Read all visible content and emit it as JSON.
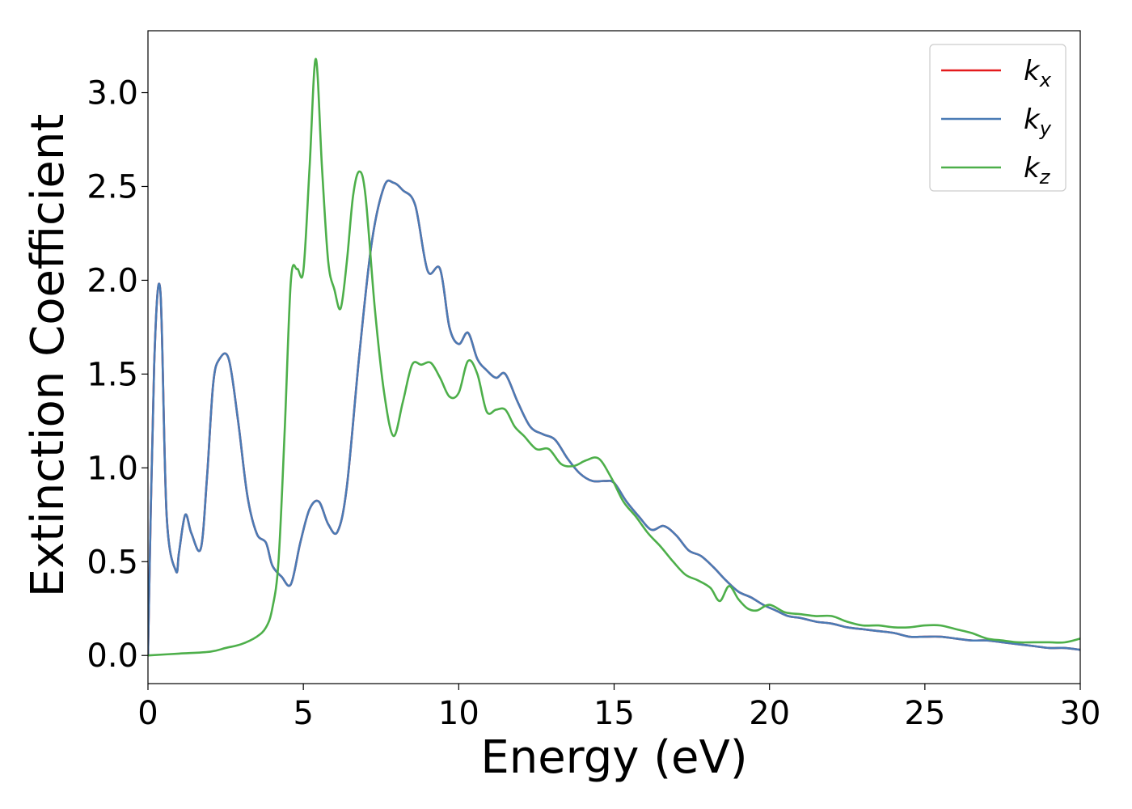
{
  "chart_data": {
    "type": "line",
    "xlabel": "Energy (eV)",
    "ylabel": "Extinction Coefficient",
    "xlim": [
      0,
      30
    ],
    "ylim": [
      -0.15,
      3.33
    ],
    "xticks": [
      0,
      5,
      10,
      15,
      20,
      25,
      30
    ],
    "xtick_labels": [
      "0",
      "5",
      "10",
      "15",
      "20",
      "25",
      "30"
    ],
    "yticks": [
      0.0,
      0.5,
      1.0,
      1.5,
      2.0,
      2.5,
      3.0
    ],
    "ytick_labels": [
      "0.0",
      "0.5",
      "1.0",
      "1.5",
      "2.0",
      "2.5",
      "3.0"
    ],
    "grid": false,
    "legend_position": "top-right",
    "series": [
      {
        "name": "k",
        "subscript": "x",
        "color": "#e41a1c",
        "x": [
          0,
          0.2,
          0.4,
          0.6,
          0.9,
          1.0,
          1.2,
          1.4,
          1.7,
          1.9,
          2.1,
          2.3,
          2.6,
          2.9,
          3.2,
          3.5,
          3.8,
          4.0,
          4.3,
          4.6,
          4.9,
          5.2,
          5.5,
          5.8,
          6.1,
          6.4,
          6.8,
          7.2,
          7.6,
          7.9,
          8.2,
          8.6,
          9.0,
          9.4,
          9.7,
          10.0,
          10.3,
          10.6,
          10.9,
          11.2,
          11.5,
          11.9,
          12.3,
          12.7,
          13.1,
          13.5,
          13.9,
          14.3,
          14.7,
          15.0,
          15.4,
          15.8,
          16.2,
          16.6,
          17.0,
          17.4,
          17.8,
          18.2,
          18.6,
          19.0,
          19.4,
          19.8,
          20.2,
          20.6,
          21.0,
          21.5,
          22.0,
          22.5,
          23.0,
          23.5,
          24.0,
          24.5,
          25.0,
          25.5,
          26.0,
          26.5,
          27.0,
          27.5,
          28.0,
          28.5,
          29.0,
          29.5,
          30.0
        ],
        "y": [
          0.0,
          1.55,
          1.94,
          0.75,
          0.45,
          0.55,
          0.75,
          0.65,
          0.57,
          0.95,
          1.45,
          1.58,
          1.58,
          1.25,
          0.85,
          0.65,
          0.6,
          0.48,
          0.42,
          0.38,
          0.6,
          0.78,
          0.82,
          0.7,
          0.66,
          0.9,
          1.6,
          2.2,
          2.5,
          2.52,
          2.48,
          2.4,
          2.05,
          2.06,
          1.75,
          1.66,
          1.72,
          1.58,
          1.52,
          1.48,
          1.5,
          1.35,
          1.22,
          1.18,
          1.15,
          1.05,
          0.97,
          0.93,
          0.93,
          0.92,
          0.82,
          0.74,
          0.67,
          0.69,
          0.64,
          0.56,
          0.53,
          0.47,
          0.4,
          0.34,
          0.31,
          0.27,
          0.24,
          0.21,
          0.2,
          0.18,
          0.17,
          0.15,
          0.14,
          0.13,
          0.12,
          0.1,
          0.1,
          0.1,
          0.09,
          0.08,
          0.08,
          0.07,
          0.06,
          0.05,
          0.04,
          0.04,
          0.03
        ]
      },
      {
        "name": "k",
        "subscript": "y",
        "color": "#4a7bb5",
        "x": [
          0,
          0.2,
          0.4,
          0.6,
          0.9,
          1.0,
          1.2,
          1.4,
          1.7,
          1.9,
          2.1,
          2.3,
          2.6,
          2.9,
          3.2,
          3.5,
          3.8,
          4.0,
          4.3,
          4.6,
          4.9,
          5.2,
          5.5,
          5.8,
          6.1,
          6.4,
          6.8,
          7.2,
          7.6,
          7.9,
          8.2,
          8.6,
          9.0,
          9.4,
          9.7,
          10.0,
          10.3,
          10.6,
          10.9,
          11.2,
          11.5,
          11.9,
          12.3,
          12.7,
          13.1,
          13.5,
          13.9,
          14.3,
          14.7,
          15.0,
          15.4,
          15.8,
          16.2,
          16.6,
          17.0,
          17.4,
          17.8,
          18.2,
          18.6,
          19.0,
          19.4,
          19.8,
          20.2,
          20.6,
          21.0,
          21.5,
          22.0,
          22.5,
          23.0,
          23.5,
          24.0,
          24.5,
          25.0,
          25.5,
          26.0,
          26.5,
          27.0,
          27.5,
          28.0,
          28.5,
          29.0,
          29.5,
          30.0
        ],
        "y": [
          0.0,
          1.55,
          1.94,
          0.75,
          0.45,
          0.55,
          0.75,
          0.65,
          0.57,
          0.95,
          1.45,
          1.58,
          1.58,
          1.25,
          0.85,
          0.65,
          0.6,
          0.48,
          0.42,
          0.38,
          0.6,
          0.78,
          0.82,
          0.7,
          0.66,
          0.9,
          1.6,
          2.2,
          2.5,
          2.52,
          2.48,
          2.4,
          2.05,
          2.06,
          1.75,
          1.66,
          1.72,
          1.58,
          1.52,
          1.48,
          1.5,
          1.35,
          1.22,
          1.18,
          1.15,
          1.05,
          0.97,
          0.93,
          0.93,
          0.92,
          0.82,
          0.74,
          0.67,
          0.69,
          0.64,
          0.56,
          0.53,
          0.47,
          0.4,
          0.34,
          0.31,
          0.27,
          0.24,
          0.21,
          0.2,
          0.18,
          0.17,
          0.15,
          0.14,
          0.13,
          0.12,
          0.1,
          0.1,
          0.1,
          0.09,
          0.08,
          0.08,
          0.07,
          0.06,
          0.05,
          0.04,
          0.04,
          0.03
        ]
      },
      {
        "name": "k",
        "subscript": "z",
        "color": "#4daf4a",
        "x": [
          0,
          1.0,
          2.0,
          2.5,
          3.0,
          3.5,
          3.8,
          4.0,
          4.2,
          4.4,
          4.6,
          4.8,
          5.0,
          5.2,
          5.4,
          5.6,
          5.8,
          6.0,
          6.2,
          6.4,
          6.6,
          6.8,
          7.0,
          7.3,
          7.6,
          7.9,
          8.2,
          8.5,
          8.8,
          9.1,
          9.4,
          9.7,
          10.0,
          10.3,
          10.6,
          10.9,
          11.2,
          11.5,
          11.8,
          12.1,
          12.5,
          12.9,
          13.3,
          13.7,
          14.1,
          14.5,
          14.9,
          15.3,
          15.7,
          16.1,
          16.5,
          16.9,
          17.3,
          17.7,
          18.1,
          18.4,
          18.7,
          19.0,
          19.3,
          19.6,
          20.0,
          20.5,
          21.0,
          21.5,
          22.0,
          22.5,
          23.0,
          23.5,
          24.0,
          24.5,
          25.0,
          25.5,
          26.0,
          26.5,
          27.0,
          27.5,
          28.0,
          28.5,
          29.0,
          29.5,
          30.0
        ],
        "y": [
          0.0,
          0.01,
          0.02,
          0.04,
          0.06,
          0.1,
          0.15,
          0.25,
          0.5,
          1.2,
          2.0,
          2.06,
          2.05,
          2.6,
          3.18,
          2.6,
          2.1,
          1.95,
          1.85,
          2.1,
          2.45,
          2.58,
          2.45,
          1.85,
          1.4,
          1.17,
          1.35,
          1.55,
          1.55,
          1.56,
          1.48,
          1.38,
          1.4,
          1.57,
          1.5,
          1.3,
          1.31,
          1.31,
          1.22,
          1.17,
          1.1,
          1.1,
          1.02,
          1.01,
          1.04,
          1.05,
          0.95,
          0.82,
          0.74,
          0.65,
          0.58,
          0.5,
          0.43,
          0.4,
          0.36,
          0.29,
          0.37,
          0.3,
          0.25,
          0.24,
          0.27,
          0.23,
          0.22,
          0.21,
          0.21,
          0.18,
          0.16,
          0.16,
          0.15,
          0.15,
          0.16,
          0.16,
          0.14,
          0.12,
          0.09,
          0.08,
          0.07,
          0.07,
          0.07,
          0.07,
          0.09
        ]
      }
    ]
  }
}
